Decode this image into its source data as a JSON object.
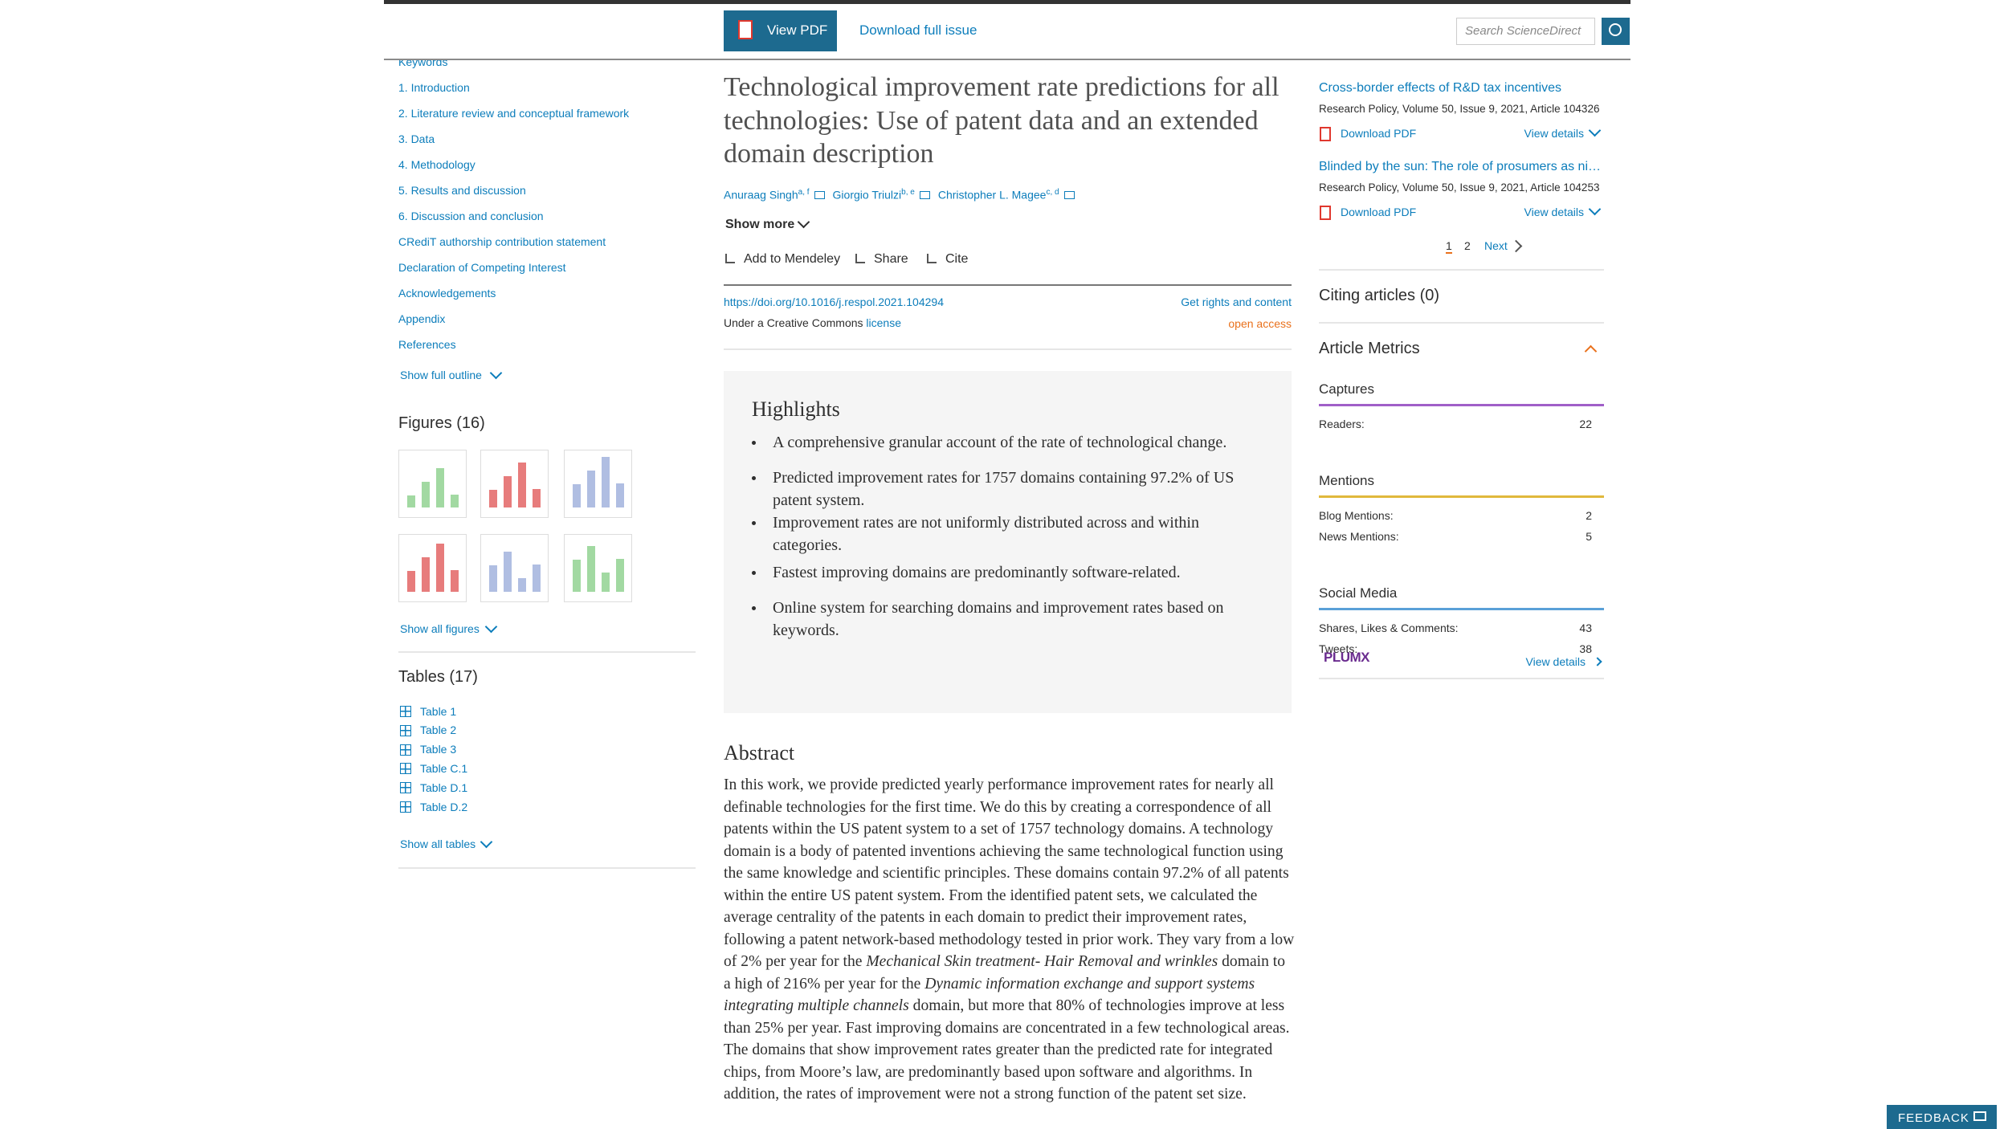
{
  "header": {
    "view_pdf": "View PDF",
    "download_issue": "Download full issue",
    "search_placeholder": "Search ScienceDirect"
  },
  "outline": {
    "items": [
      "Keywords",
      "1. Introduction",
      "2. Literature review and conceptual framework",
      "3. Data",
      "4. Methodology",
      "5. Results and discussion",
      "6. Discussion and conclusion",
      "CRediT authorship contribution statement",
      "Declaration of Competing Interest",
      "Acknowledgements",
      "Appendix",
      "References"
    ],
    "show_full": "Show full outline"
  },
  "figures": {
    "heading": "Figures (16)",
    "show_all": "Show all figures"
  },
  "tables": {
    "heading": "Tables (17)",
    "items": [
      "Table 1",
      "Table 2",
      "Table 3",
      "Table C.1",
      "Table D.1",
      "Table D.2"
    ],
    "show_all": "Show all tables"
  },
  "article": {
    "title": "Technological improvement rate predictions for all technologies: Use of patent data and an extended domain description",
    "authors": [
      {
        "name": "Anuraag Singh",
        "sup": "a, f"
      },
      {
        "name": "Giorgio Triulzi",
        "sup": "b, e"
      },
      {
        "name": "Christopher L. Magee",
        "sup": "c, d"
      }
    ],
    "show_more": "Show more",
    "actions": [
      "Add to Mendeley",
      "Share",
      "Cite"
    ],
    "doi": "https://doi.org/10.1016/j.respol.2021.104294",
    "rights": "Get rights and content",
    "license_prefix": "Under a Creative Commons",
    "license_link": "license",
    "access": "open access"
  },
  "highlights": {
    "heading": "Highlights",
    "items": [
      "A comprehensive granular account of the rate of technological change.",
      "Predicted improvement rates for 1757 domains containing 97.2% of US patent system.",
      "Improvement rates are not uniformly distributed across and within categories.",
      "Fastest improving domains are predominantly software-related.",
      "Online system for searching domains and improvement rates based on keywords."
    ]
  },
  "abstract": {
    "heading": "Abstract",
    "segments": [
      {
        "text": "In this work, we provide predicted yearly performance improvement rates for nearly all definable technologies for the first time. We do this by creating a correspondence of all patents within the US patent system to a set of 1757 technology domains. A technology domain is a body of patented inventions achieving the same technological function using the same knowledge and scientific principles. These domains contain 97.2% of all patents within the entire US patent system. From the identified patent sets, we calculated the average centrality of the patents in each domain to predict their improvement rates, following a patent network-based methodology tested in prior work. They vary from a low of 2% per year for the ",
        "italic": false
      },
      {
        "text": "Mechanical Skin treatment- Hair Removal and wrinkles",
        "italic": true
      },
      {
        "text": " domain to a high of 216% per year for the ",
        "italic": false
      },
      {
        "text": "Dynamic information exchange and support systems integrating multiple channels",
        "italic": true
      },
      {
        "text": " domain, but more that 80% of technologies improve at less than 25% per year. Fast improving domains are concentrated in a few technological areas. The domains that show improvement rates greater than the predicted rate for integrated chips, from Moore’s law, are predominantly based upon software and algorithms. In addition, the rates of improvement were not a strong function of the patent set size.",
        "italic": false
      }
    ]
  },
  "recommended": {
    "items": [
      {
        "title": "Cross-border effects of R&D tax incentives",
        "meta": "Research Policy, Volume 50, Issue 9, 2021, Article 104326",
        "download": "Download PDF",
        "details": "View details"
      },
      {
        "title": "Blinded by the sun: The role of prosumers as ni…",
        "meta": "Research Policy, Volume 50, Issue 9, 2021, Article 104253",
        "download": "Download PDF",
        "details": "View details"
      }
    ],
    "pages": [
      "1",
      "2"
    ],
    "next": "Next"
  },
  "citing": "Citing articles (0)",
  "metrics": {
    "heading": "Article Metrics",
    "groups": [
      {
        "name": "Captures",
        "color": "#a05fc8",
        "rows": [
          {
            "label": "Readers:",
            "value": "22"
          }
        ]
      },
      {
        "name": "Mentions",
        "color": "#e0b83c",
        "rows": [
          {
            "label": "Blog Mentions:",
            "value": "2"
          },
          {
            "label": "News Mentions:",
            "value": "5"
          }
        ]
      },
      {
        "name": "Social Media",
        "color": "#5aa0d8",
        "rows": [
          {
            "label": "Shares, Likes & Comments:",
            "value": "43"
          },
          {
            "label": "Tweets:",
            "value": "38"
          }
        ]
      }
    ],
    "plumx": "PLUMX",
    "view_details": "View details"
  },
  "feedback": "FEEDBACK"
}
